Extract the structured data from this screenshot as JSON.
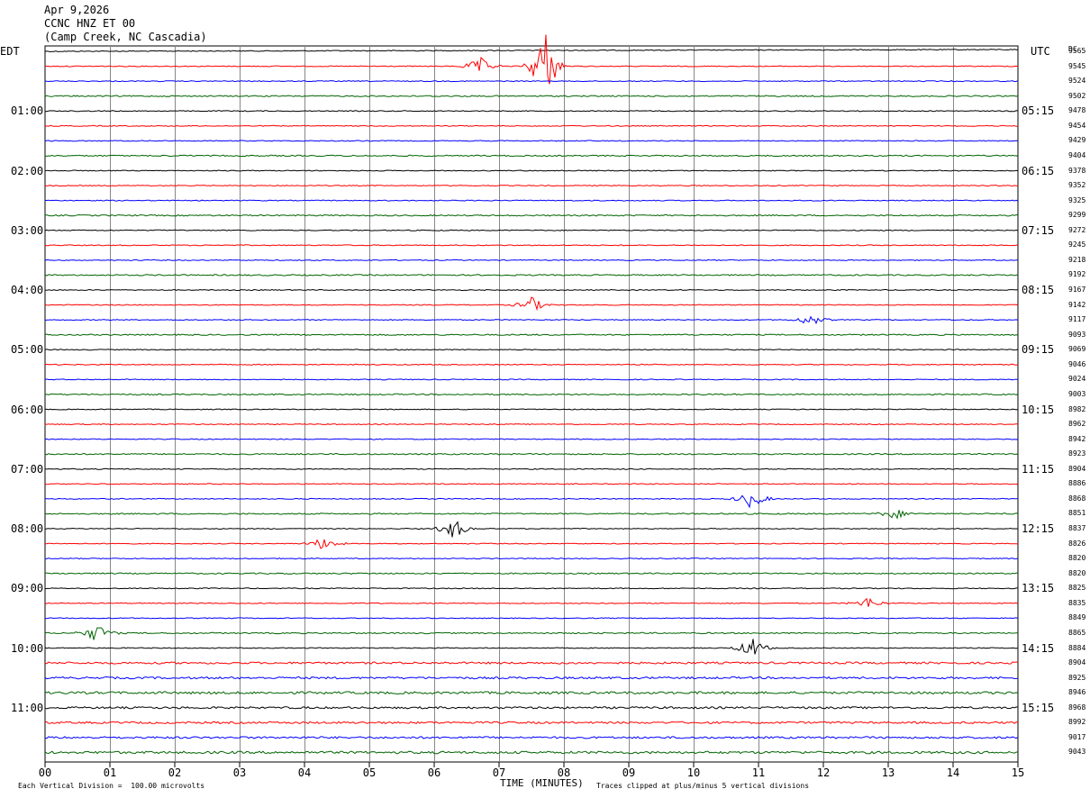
{
  "header": {
    "date": "Apr 9,2026",
    "station": "CCNC HNZ ET 00",
    "location": "(Camp Creek, NC Cascadia)"
  },
  "left_tz": "EDT",
  "right_tz": "UTC",
  "dc_header": "DC",
  "chart_data": {
    "type": "line",
    "title": "CCNC HNZ ET 00",
    "xlabel": "TIME (MINUTES)",
    "x_ticks": [
      "00",
      "01",
      "02",
      "03",
      "04",
      "05",
      "06",
      "07",
      "08",
      "09",
      "10",
      "11",
      "12",
      "13",
      "14",
      "15"
    ],
    "xlim": [
      0,
      15
    ],
    "trace_count": 48,
    "trace_colors": [
      "#000000",
      "#ff0000",
      "#0000ff",
      "#006400"
    ],
    "hour_labels_edt": [
      "01:00",
      "02:00",
      "03:00",
      "04:00",
      "05:00",
      "06:00",
      "07:00",
      "08:00",
      "09:00",
      "10:00",
      "11:00"
    ],
    "hour_labels_utc": [
      "05:15",
      "06:15",
      "07:15",
      "08:15",
      "09:15",
      "10:15",
      "11:15",
      "12:15",
      "13:15",
      "14:15",
      "15:15"
    ],
    "dc_offsets": [
      "9565",
      "9545",
      "9524",
      "9502",
      "9478",
      "9454",
      "9429",
      "9404",
      "9378",
      "9352",
      "9325",
      "9299",
      "9272",
      "9245",
      "9218",
      "9192",
      "9167",
      "9142",
      "9117",
      "9093",
      "9069",
      "9046",
      "9024",
      "9003",
      "8982",
      "8962",
      "8942",
      "8923",
      "8904",
      "8886",
      "8868",
      "8851",
      "8837",
      "8826",
      "8820",
      "8820",
      "8825",
      "8835",
      "8849",
      "8865",
      "8884",
      "8904",
      "8925",
      "8946",
      "8968",
      "8992",
      "9017",
      "9043"
    ],
    "events": [
      {
        "trace": 1,
        "minute": 7.7,
        "amplitude": 5
      },
      {
        "trace": 1,
        "minute": 6.7,
        "amplitude": 1.2
      },
      {
        "trace": 17,
        "minute": 7.5,
        "amplitude": 1
      },
      {
        "trace": 18,
        "minute": 11.8,
        "amplitude": 0.8
      },
      {
        "trace": 30,
        "minute": 10.9,
        "amplitude": 1.3
      },
      {
        "trace": 31,
        "minute": 13.1,
        "amplitude": 0.7
      },
      {
        "trace": 32,
        "minute": 6.3,
        "amplitude": 1.4
      },
      {
        "trace": 33,
        "minute": 4.3,
        "amplitude": 0.9
      },
      {
        "trace": 37,
        "minute": 12.7,
        "amplitude": 0.8
      },
      {
        "trace": 39,
        "minute": 0.8,
        "amplitude": 1.2
      },
      {
        "trace": 40,
        "minute": 10.9,
        "amplitude": 1.4
      }
    ]
  },
  "footer": {
    "vertical_division": "Each Vertical Division =  100.00 microvolts",
    "clipping": "Traces clipped at plus/minus 5 vertical divisions"
  }
}
